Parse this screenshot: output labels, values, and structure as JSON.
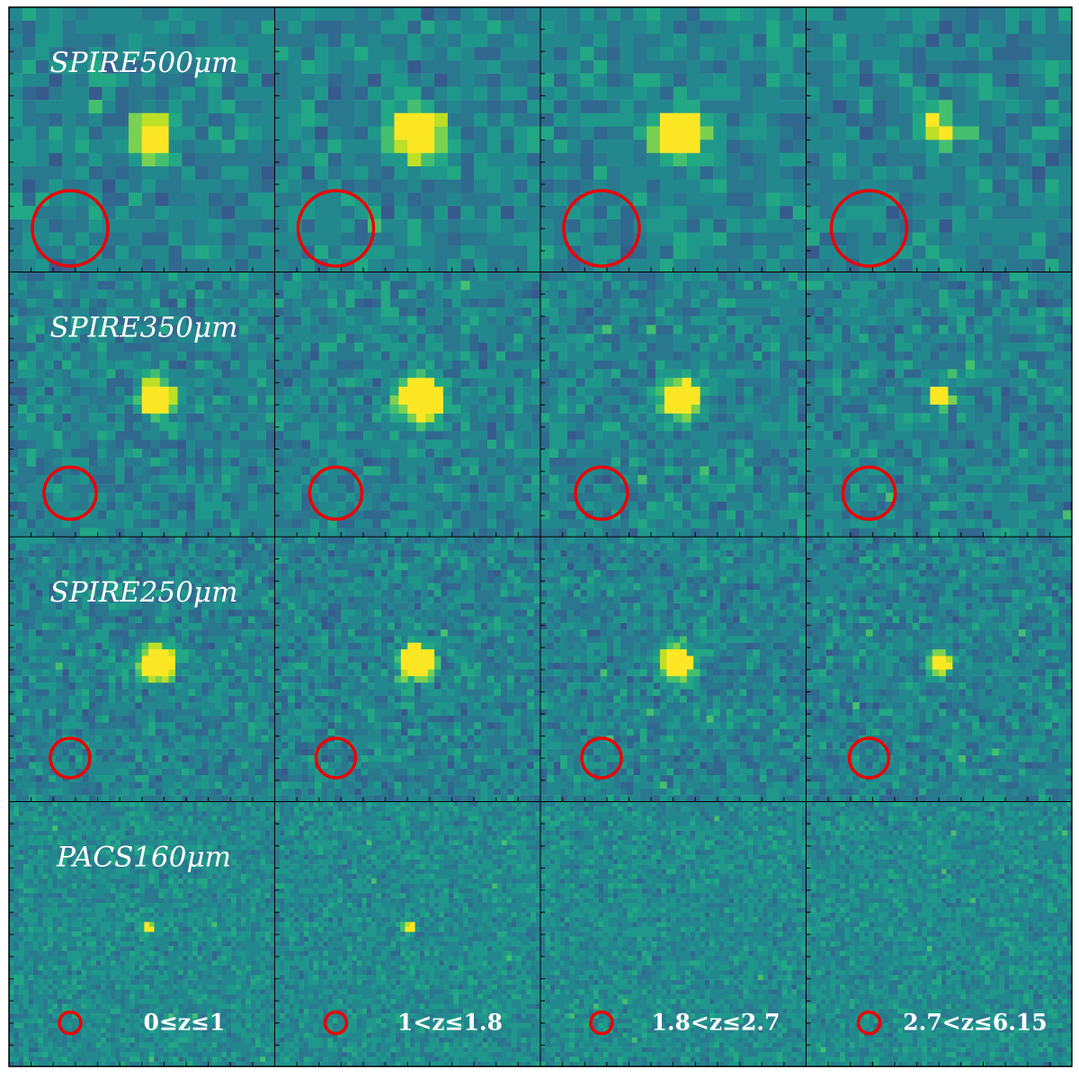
{
  "rows": [
    {
      "label": "SPIRE500μm"
    },
    {
      "label": "SPIRE350μm"
    },
    {
      "label": "SPIRE250μm"
    },
    {
      "label": "PACS160μm"
    }
  ],
  "columns": [
    {
      "label": "0≤z≤1"
    },
    {
      "label": "1<z≤1.8"
    },
    {
      "label": "1.8<z≤2.7"
    },
    {
      "label": "2.7<z≤6.15"
    }
  ]
}
